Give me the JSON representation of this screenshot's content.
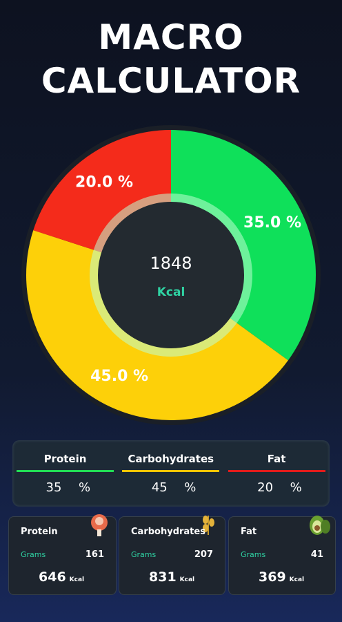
{
  "header": {
    "title": [
      "MACRO",
      "CALCULATOR"
    ]
  },
  "chart_data": {
    "type": "donut",
    "values": [
      35,
      45,
      20
    ],
    "value_labels": [
      "35.0 %",
      "45.0 %",
      "20.0 %"
    ],
    "colors": [
      "#0fe05a",
      "#fdd009",
      "#f42b1b"
    ],
    "center_value": 1848,
    "center_label": "Kcal"
  },
  "split": {
    "columns": [
      {
        "name": "Protein",
        "color": "#22dd55",
        "value": 35,
        "unit": "%"
      },
      {
        "name": "Carbohydrates",
        "color": "#f5c400",
        "value": 45,
        "unit": "%"
      },
      {
        "name": "Fat",
        "color": "#e21b1b",
        "value": 20,
        "unit": "%"
      }
    ]
  },
  "cards": [
    {
      "name": "Protein",
      "grams_label": "Grams",
      "grams": 161,
      "kcal": 646,
      "kcal_unit": "Kcal"
    },
    {
      "name": "Carbohydrates",
      "grams_label": "Grams",
      "grams": 207,
      "kcal": 831,
      "kcal_unit": "Kcal"
    },
    {
      "name": "Fat",
      "grams_label": "Grams",
      "grams": 41,
      "kcal": 369,
      "kcal_unit": "Kcal"
    }
  ]
}
